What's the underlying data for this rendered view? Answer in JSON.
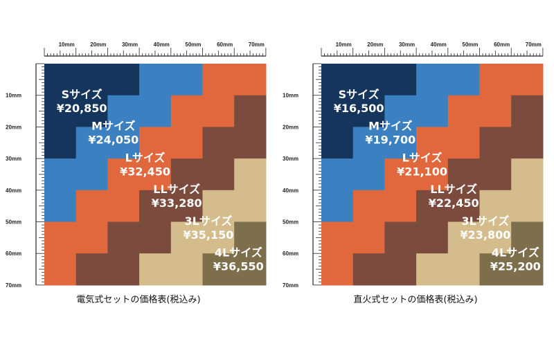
{
  "unit_labels": [
    "10mm",
    "20mm",
    "30mm",
    "40mm",
    "50mm",
    "60mm",
    "70mm"
  ],
  "colors": {
    "S": "#15355c",
    "M": "#3b80c0",
    "L": "#e0683c",
    "LL": "#7b4c3e",
    "3L": "#d4bc8c",
    "4L": "#7e6f4c",
    "text_light": "#ffffff",
    "text_3L": "#ffffff"
  },
  "panels": [
    {
      "caption": "電気式セットの価格表(税込み)",
      "sizes": [
        {
          "key": "S",
          "name": "Sサイズ",
          "price": "¥20,850"
        },
        {
          "key": "M",
          "name": "Mサイズ",
          "price": "¥24,050"
        },
        {
          "key": "L",
          "name": "Lサイズ",
          "price": "¥32,450"
        },
        {
          "key": "LL",
          "name": "LLサイズ",
          "price": "¥33,280"
        },
        {
          "key": "3L",
          "name": "3Lサイズ",
          "price": "¥35,150"
        },
        {
          "key": "4L",
          "name": "4Lサイズ",
          "price": "¥36,550"
        }
      ]
    },
    {
      "caption": "直火式セットの価格表(税込み)",
      "sizes": [
        {
          "key": "S",
          "name": "Sサイズ",
          "price": "¥16,500"
        },
        {
          "key": "M",
          "name": "Mサイズ",
          "price": "¥19,700"
        },
        {
          "key": "L",
          "name": "Lサイズ",
          "price": "¥21,100"
        },
        {
          "key": "LL",
          "name": "LLサイズ",
          "price": "¥22,450"
        },
        {
          "key": "3L",
          "name": "3Lサイズ",
          "price": "¥23,800"
        },
        {
          "key": "4L",
          "name": "4Lサイズ",
          "price": "¥25,200"
        }
      ]
    }
  ]
}
